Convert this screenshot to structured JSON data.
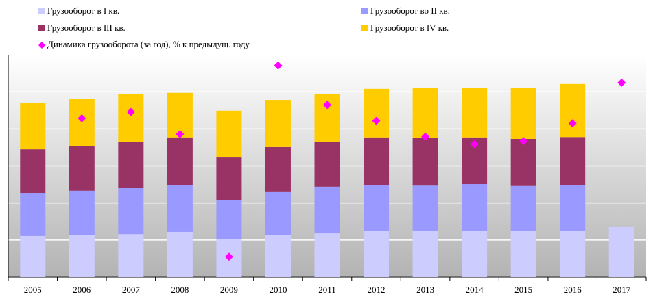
{
  "chart_data": {
    "type": "bar",
    "categories": [
      "2005",
      "2006",
      "2007",
      "2008",
      "2009",
      "2010",
      "2011",
      "2012",
      "2013",
      "2014",
      "2015",
      "2016",
      "2017"
    ],
    "stacked": true,
    "ylim": [
      0,
      600
    ],
    "yticks": [
      0,
      100,
      200,
      300,
      400,
      500
    ],
    "grid": true,
    "y2lim": [
      80,
      115
    ],
    "series": [
      {
        "name": "Грузооборот в I кв.",
        "color": "#ccccff",
        "values": [
          111,
          114,
          116,
          122,
          103,
          114,
          118,
          124,
          124,
          124,
          124,
          124,
          135
        ]
      },
      {
        "name": "Грузооборот во II кв.",
        "color": "#9999ff",
        "values": [
          116,
          119,
          124,
          127,
          104,
          117,
          126,
          125,
          123,
          127,
          122,
          125,
          null
        ]
      },
      {
        "name": "Грузооборот в III кв.",
        "color": "#993366",
        "values": [
          118,
          121,
          124,
          128,
          116,
          120,
          120,
          128,
          128,
          126,
          127,
          129,
          null
        ]
      },
      {
        "name": "Грузооборот в IV кв.",
        "color": "#ffcc00",
        "values": [
          124,
          126,
          129,
          120,
          126,
          127,
          129,
          131,
          136,
          133,
          138,
          143,
          null
        ]
      },
      {
        "name": "Динамика грузооборота (за год), % к предыдущ. году",
        "color": "#ff00ff",
        "type": "scatter",
        "axis": "y2",
        "values": [
          null,
          105.0,
          106.0,
          102.5,
          83.2,
          113.3,
          107.1,
          104.6,
          102.1,
          100.9,
          101.4,
          104.2,
          110.6
        ]
      }
    ]
  }
}
